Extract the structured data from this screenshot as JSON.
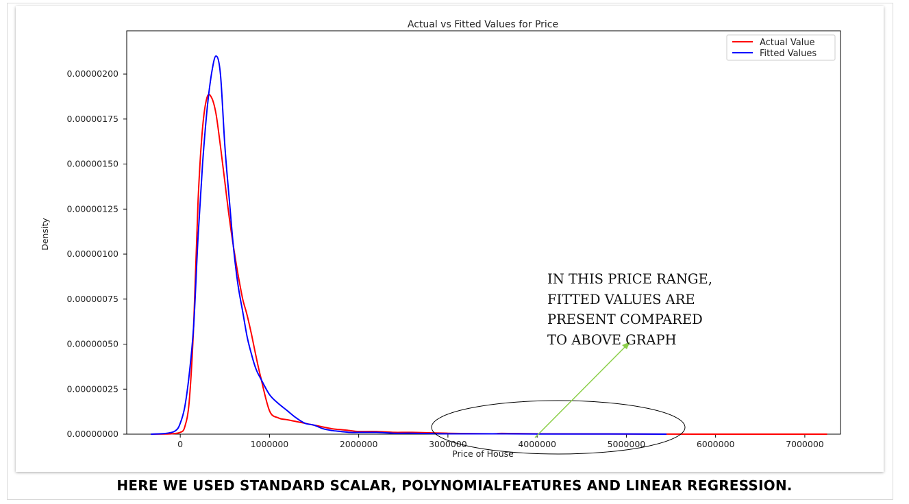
{
  "chart_data": {
    "type": "line",
    "title": "Actual vs Fitted Values for Price",
    "xlabel": "Price of House",
    "ylabel": "Density",
    "xlim": [
      -600000,
      7400000
    ],
    "ylim": [
      0,
      2.24e-06
    ],
    "x_ticks": [
      0,
      1000000,
      2000000,
      3000000,
      4000000,
      5000000,
      6000000,
      7000000
    ],
    "x_tick_labels": [
      "0",
      "1000000",
      "2000000",
      "3000000",
      "4000000",
      "5000000",
      "6000000",
      "7000000"
    ],
    "y_ticks": [
      0,
      2.5e-07,
      5e-07,
      7.5e-07,
      1e-06,
      1.25e-06,
      1.5e-06,
      1.75e-06,
      2e-06
    ],
    "y_tick_labels": [
      "0.00000000",
      "0.00000025",
      "0.00000050",
      "0.00000075",
      "0.00000100",
      "0.00000125",
      "0.00000150",
      "0.00000175",
      "0.00000200"
    ],
    "legend_position": "top-right",
    "grid": false,
    "series": [
      {
        "name": "Actual Value",
        "color": "#ff0000",
        "x": [
          -330000,
          -100000,
          0,
          50000,
          100000,
          150000,
          200000,
          250000,
          300000,
          350000,
          400000,
          450000,
          500000,
          550000,
          600000,
          650000,
          700000,
          750000,
          800000,
          850000,
          900000,
          1000000,
          1100000,
          1200000,
          1300000,
          1400000,
          1500000,
          1600000,
          1700000,
          1800000,
          1900000,
          2000000,
          2200000,
          2400000,
          2600000,
          3000000,
          3500000,
          3600000,
          4000000,
          5000000,
          6000000,
          7000000,
          7250000
        ],
        "y": [
          0,
          2e-09,
          1e-08,
          4e-08,
          1.8e-07,
          6e-07,
          1.3e-06,
          1.7e-06,
          1.87e-06,
          1.87e-06,
          1.78e-06,
          1.6e-06,
          1.4e-06,
          1.2e-06,
          1.03e-06,
          8.8e-07,
          7.5e-07,
          6.6e-07,
          5.5e-07,
          4.3e-07,
          3.2e-07,
          1.3e-07,
          9e-08,
          8e-08,
          7e-08,
          6e-08,
          5e-08,
          4e-08,
          3e-08,
          2.5e-08,
          2e-08,
          1.5e-08,
          1.5e-08,
          1e-08,
          1e-08,
          5e-09,
          2e-09,
          4e-09,
          2e-09,
          1e-09,
          0,
          0,
          0
        ]
      },
      {
        "name": "Fitted Values",
        "color": "#0000ff",
        "x": [
          -330000,
          -150000,
          -50000,
          0,
          50000,
          100000,
          150000,
          200000,
          250000,
          300000,
          350000,
          400000,
          450000,
          500000,
          550000,
          600000,
          650000,
          700000,
          750000,
          800000,
          850000,
          900000,
          1000000,
          1100000,
          1200000,
          1300000,
          1400000,
          1500000,
          1600000,
          1700000,
          1800000,
          1900000,
          2000000,
          2200000,
          2400000,
          2600000,
          3000000,
          3500000,
          4000000,
          5000000,
          5450000
        ],
        "y": [
          0,
          5e-09,
          2e-08,
          6e-08,
          1.5e-07,
          3.3e-07,
          6e-07,
          1.1e-06,
          1.5e-06,
          1.8e-06,
          2e-06,
          2.1e-06,
          2e-06,
          1.6e-06,
          1.3e-06,
          1.02e-06,
          8.2e-07,
          6.8e-07,
          5.4e-07,
          4.4e-07,
          3.6e-07,
          3.1e-07,
          2.2e-07,
          1.7e-07,
          1.3e-07,
          9e-08,
          6e-08,
          5e-08,
          3e-08,
          2e-08,
          1.5e-08,
          1e-08,
          1e-08,
          1e-08,
          5e-09,
          5e-09,
          2e-09,
          2e-09,
          1e-09,
          1e-09,
          0
        ]
      }
    ],
    "annotation": {
      "lines": [
        "IN THIS PRICE RANGE,",
        "FITTED VALUES ARE",
        "PRESENT COMPARED",
        "TO ABOVE GRAPH"
      ],
      "arrow_color": "#8ccf4a",
      "ellipse_color": "#000000"
    }
  },
  "caption": {
    "text": "HERE WE USED STANDARD SCALAR, POLYNOMIALFEATURES AND LINEAR REGRESSION."
  }
}
